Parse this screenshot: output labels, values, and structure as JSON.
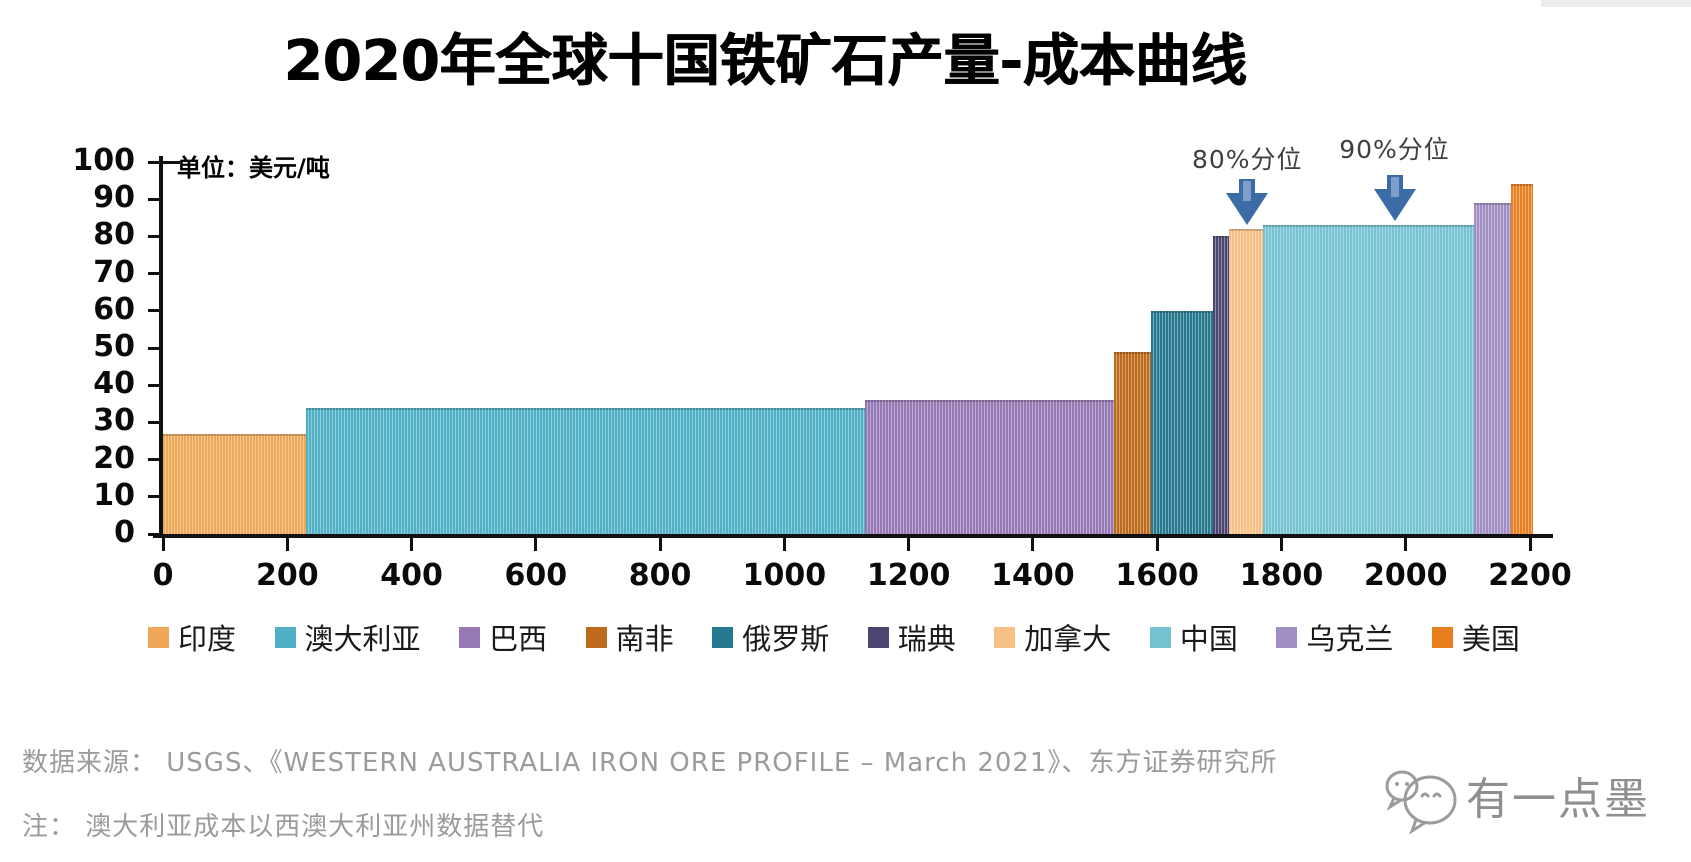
{
  "title": "2020年全球十国铁矿石产量-成本曲线",
  "chart_data": {
    "type": "bar",
    "title": "2020年全球十国铁矿石产量-成本曲线",
    "unit_label": "单位：美元/吨",
    "ylim": [
      0,
      100
    ],
    "xlim": [
      0,
      2240
    ],
    "y_ticks": [
      0,
      10,
      20,
      30,
      40,
      50,
      60,
      70,
      80,
      90,
      100
    ],
    "x_ticks": [
      0,
      200,
      400,
      600,
      800,
      1000,
      1200,
      1400,
      1600,
      1800,
      2000,
      2200
    ],
    "grid": false,
    "segments": [
      {
        "slug": "india",
        "country": "印度",
        "start": 0,
        "end": 230,
        "cost": 27,
        "color": "#efa758"
      },
      {
        "slug": "australia",
        "country": "澳大利亚",
        "start": 230,
        "end": 1130,
        "cost": 34,
        "color": "#4fafc4"
      },
      {
        "slug": "brazil",
        "country": "巴西",
        "start": 1130,
        "end": 1530,
        "cost": 36,
        "color": "#9678b5"
      },
      {
        "slug": "south-africa",
        "country": "南非",
        "start": 1530,
        "end": 1590,
        "cost": 49,
        "color": "#bd6a1d"
      },
      {
        "slug": "russia",
        "country": "俄罗斯",
        "start": 1590,
        "end": 1690,
        "cost": 60,
        "color": "#27798f"
      },
      {
        "slug": "sweden",
        "country": "瑞典",
        "start": 1690,
        "end": 1715,
        "cost": 80,
        "color": "#4c4570"
      },
      {
        "slug": "canada",
        "country": "加拿大",
        "start": 1715,
        "end": 1770,
        "cost": 82,
        "color": "#f7c084"
      },
      {
        "slug": "china",
        "country": "中国",
        "start": 1770,
        "end": 2110,
        "cost": 83,
        "color": "#74c2d2"
      },
      {
        "slug": "ukraine",
        "country": "乌克兰",
        "start": 2110,
        "end": 2170,
        "cost": 89,
        "color": "#a18fc4"
      },
      {
        "slug": "usa",
        "country": "美国",
        "start": 2170,
        "end": 2205,
        "cost": 94,
        "color": "#e97f1f"
      }
    ],
    "percentile_markers": [
      {
        "label": "80%分位",
        "x": 1745
      },
      {
        "label": "90%分位",
        "x": 1982
      }
    ],
    "arrow_color": "#3c6ca5",
    "arrow_inner_color": "#7e9fcc"
  },
  "legend": [
    {
      "slug": "india",
      "label": "印度",
      "color": "#efa758"
    },
    {
      "slug": "australia",
      "label": "澳大利亚",
      "color": "#4fafc4"
    },
    {
      "slug": "brazil",
      "label": "巴西",
      "color": "#9678b5"
    },
    {
      "slug": "south-africa",
      "label": "南非",
      "color": "#bd6a1d"
    },
    {
      "slug": "russia",
      "label": "俄罗斯",
      "color": "#27798f"
    },
    {
      "slug": "sweden",
      "label": "瑞典",
      "color": "#4c4570"
    },
    {
      "slug": "canada",
      "label": "加拿大",
      "color": "#f7c084"
    },
    {
      "slug": "china",
      "label": "中国",
      "color": "#74c2d2"
    },
    {
      "slug": "ukraine",
      "label": "乌克兰",
      "color": "#a18fc4"
    },
    {
      "slug": "usa",
      "label": "美国",
      "color": "#e97f1f"
    }
  ],
  "footer": {
    "source": "数据来源： USGS、《WESTERN AUSTRALIA IRON ORE PROFILE – March 2021》、东方证券研究所",
    "note": "注： 澳大利亚成本以西澳大利亚州数据替代",
    "watermark": "有一点墨"
  },
  "colors": {
    "axis": "#101010",
    "annotation_text": "#3f3f3f",
    "footer_text": "#9b9b9b",
    "watermark": "#8f8f8f"
  }
}
